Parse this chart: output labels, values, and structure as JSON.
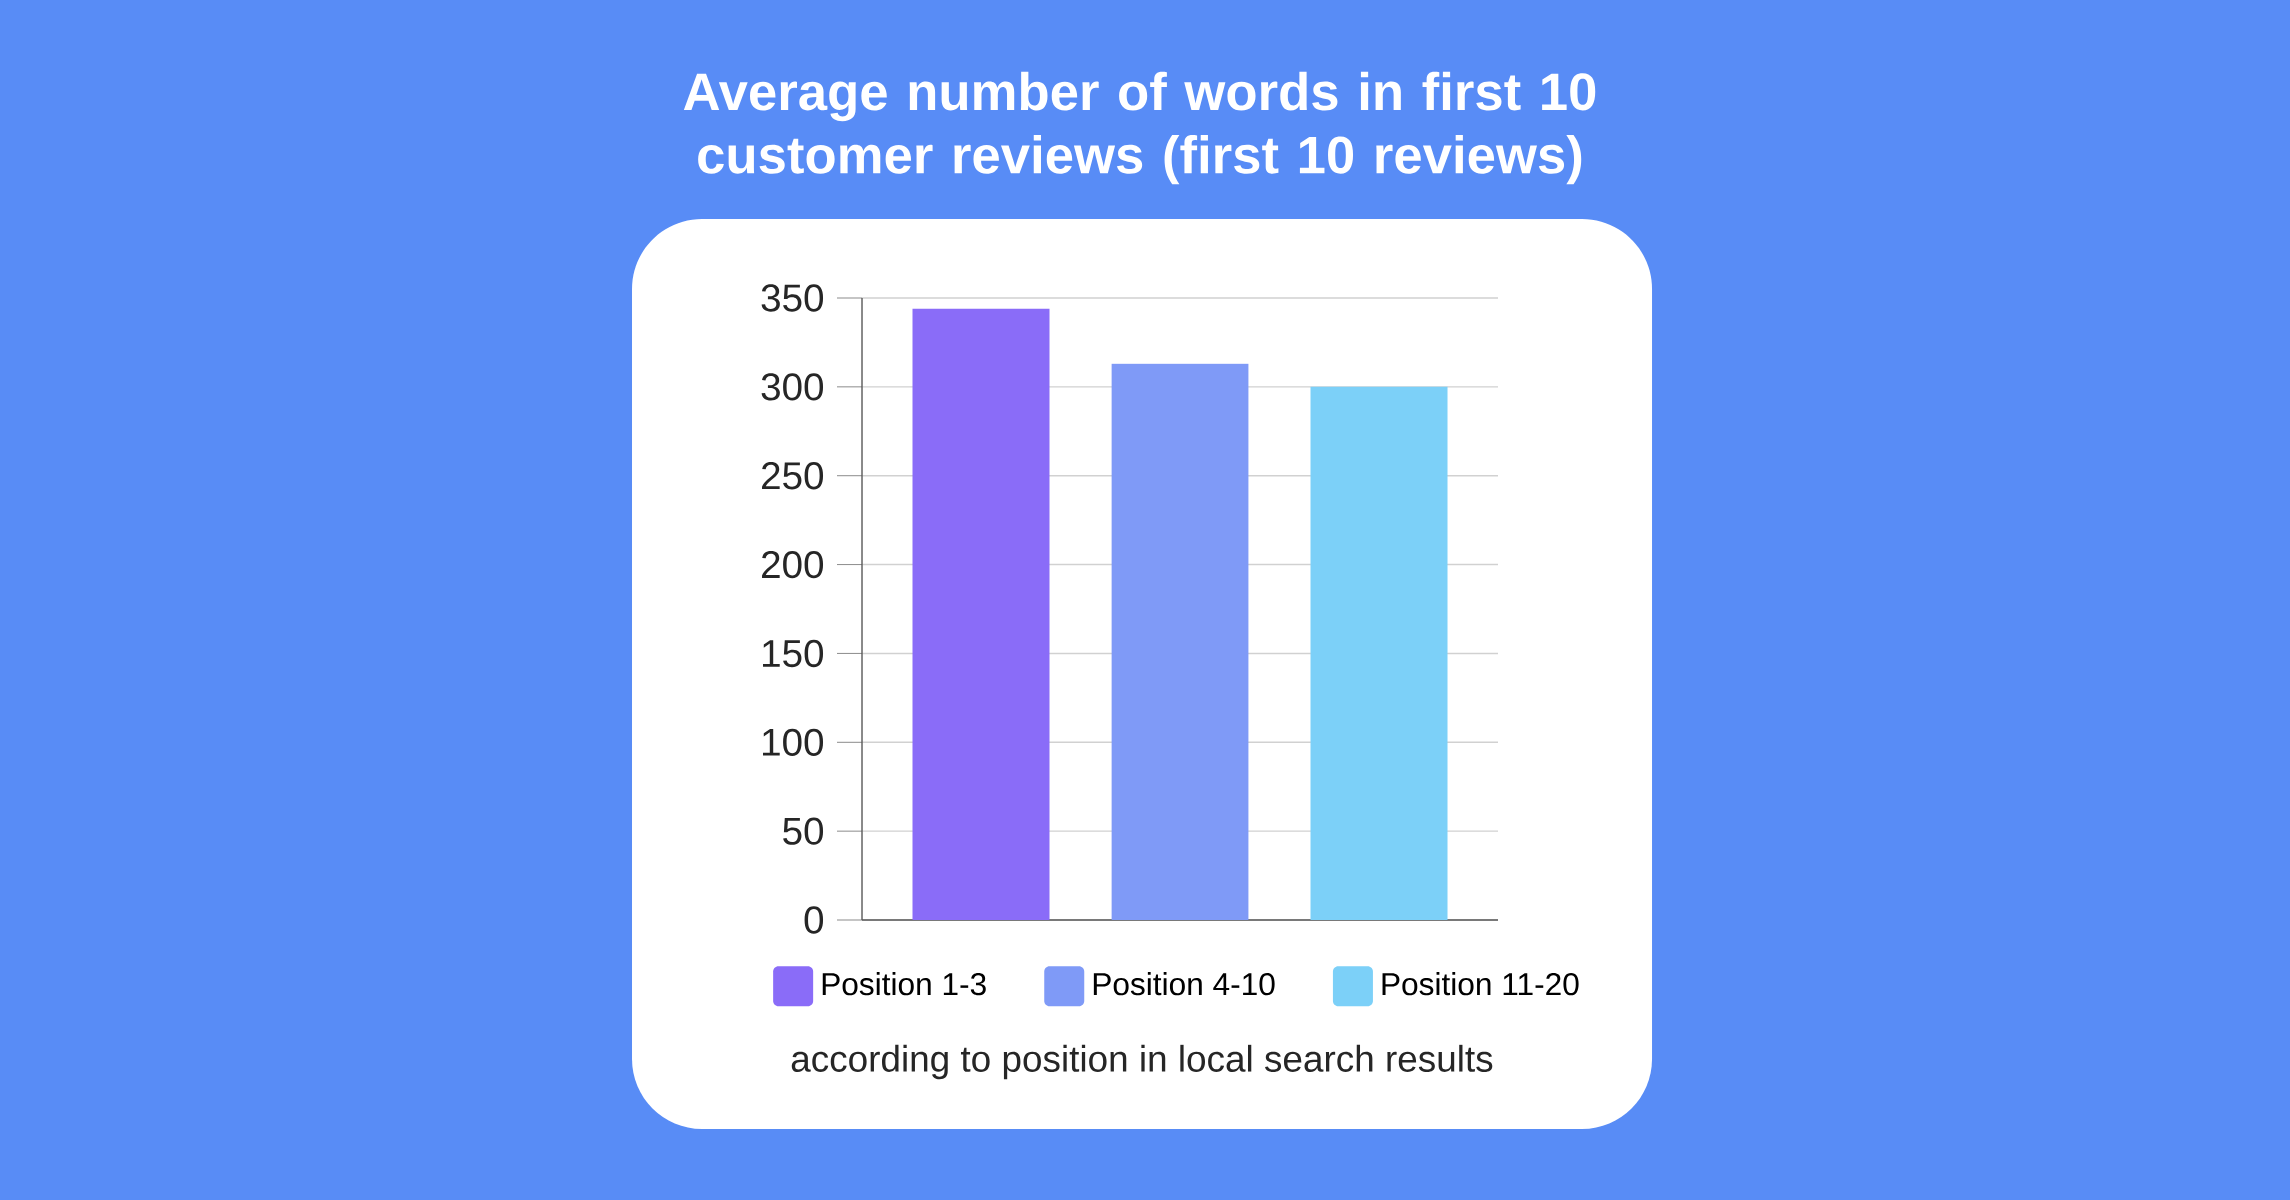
{
  "chart_data": {
    "type": "bar",
    "title": "Average number of words in first 10 customer reviews (first 10 reviews)",
    "categories": [
      null
    ],
    "series": [
      {
        "name": "Position 1-3",
        "color": "#8a6cf8",
        "values": [
          344
        ]
      },
      {
        "name": "Position 4-10",
        "color": "#7f9af7",
        "values": [
          313
        ]
      },
      {
        "name": "Position 11-20",
        "color": "#7cd0f8",
        "values": [
          300
        ]
      }
    ],
    "ylim": [
      0,
      350
    ],
    "yticks": [
      0,
      50,
      100,
      150,
      200,
      250,
      300,
      350
    ],
    "grid": "y",
    "legend": "bottom",
    "annotations": [
      "according to position in local search results"
    ]
  }
}
